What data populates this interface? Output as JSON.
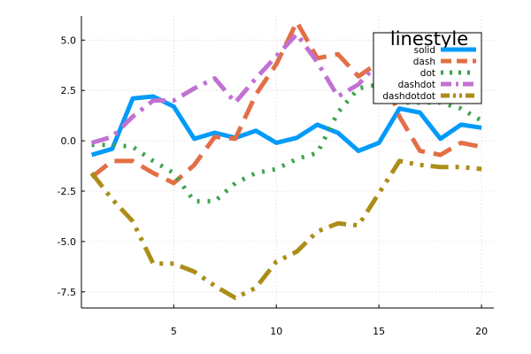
{
  "chart_data": {
    "type": "line",
    "title": "",
    "xlabel": "",
    "ylabel": "",
    "xlim": [
      0.5,
      20.6
    ],
    "ylim": [
      -8.3,
      6.2
    ],
    "xticks": [
      5,
      10,
      15,
      20
    ],
    "xtick_labels": [
      "5",
      "10",
      "15",
      "20"
    ],
    "yticks": [
      -7.5,
      -5.0,
      -2.5,
      0.0,
      2.5,
      5.0
    ],
    "ytick_labels": [
      "-7.5",
      "-5.0",
      "-2.5",
      "0.0",
      "2.5",
      "5.0"
    ],
    "grid": true,
    "legend_title": "linestyle",
    "legend_position": "top-right",
    "x": [
      1,
      2,
      3,
      4,
      5,
      6,
      7,
      8,
      9,
      10,
      11,
      12,
      13,
      14,
      15,
      16,
      17,
      18,
      19,
      20
    ],
    "series": [
      {
        "name": "solid",
        "style": "solid",
        "color": "#009af9",
        "values": [
          -0.7,
          -0.4,
          2.1,
          2.2,
          1.7,
          0.1,
          0.4,
          0.15,
          0.5,
          -0.1,
          0.15,
          0.8,
          0.4,
          -0.5,
          -0.1,
          1.6,
          1.4,
          0.1,
          0.8,
          0.65
        ]
      },
      {
        "name": "dash",
        "style": "dash",
        "color": "#e26f46",
        "values": [
          -1.8,
          -1.0,
          -1.0,
          -1.6,
          -2.1,
          -1.2,
          0.2,
          0.1,
          2.3,
          3.8,
          5.9,
          4.1,
          4.3,
          3.2,
          3.9,
          1.2,
          -0.5,
          -0.7,
          -0.1,
          -0.3
        ]
      },
      {
        "name": "dot",
        "style": "dot",
        "color": "#3da44d",
        "values": [
          -0.2,
          -0.2,
          -0.3,
          -1.0,
          -1.6,
          -3.0,
          -3.0,
          -2.1,
          -1.6,
          -1.4,
          -0.9,
          -0.6,
          1.4,
          2.6,
          2.8,
          1.9,
          1.9,
          1.9,
          1.6,
          1.0
        ]
      },
      {
        "name": "dashdot",
        "style": "dashdot",
        "color": "#c271d2",
        "values": [
          -0.1,
          0.2,
          1.2,
          2.0,
          2.0,
          2.6,
          3.1,
          1.9,
          3.1,
          4.2,
          5.3,
          3.9,
          2.2,
          2.8,
          3.9,
          3.5,
          3.0,
          3.8,
          3.7,
          3.3
        ]
      },
      {
        "name": "dashdotdot",
        "style": "dashdotdot",
        "color": "#ac8d18",
        "values": [
          -1.6,
          -2.9,
          -4.0,
          -6.1,
          -6.1,
          -6.5,
          -7.2,
          -7.8,
          -7.3,
          -6.0,
          -5.5,
          -4.5,
          -4.1,
          -4.2,
          -2.6,
          -1.0,
          -1.2,
          -1.3,
          -1.3,
          -1.4
        ]
      }
    ]
  }
}
